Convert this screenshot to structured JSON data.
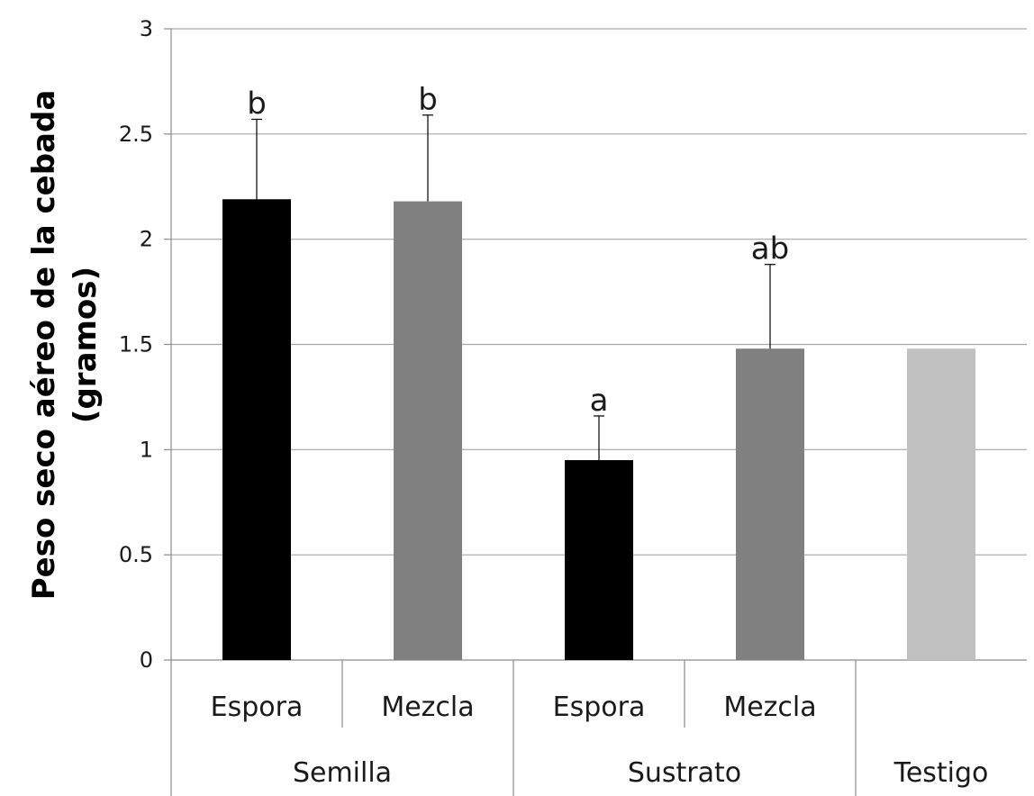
{
  "chart_data": {
    "type": "bar",
    "title": "",
    "ylabel_lines": [
      "Peso seco aéreo de la cebada",
      "(gramos)"
    ],
    "xlabel": "",
    "ylim": [
      0,
      3
    ],
    "yticks": [
      0,
      0.5,
      1,
      1.5,
      2,
      2.5,
      3
    ],
    "ytick_labels": [
      "0",
      "0.5",
      "1",
      "1.5",
      "2",
      "2.5",
      "3"
    ],
    "grid": true,
    "legend": "none",
    "groups": [
      {
        "label": "Semilla",
        "span": 2
      },
      {
        "label": "Sustrato",
        "span": 2
      },
      {
        "label": "Testigo",
        "span": 1
      }
    ],
    "categories": [
      "Espora",
      "Mezcla",
      "Espora",
      "Mezcla",
      ""
    ],
    "values": [
      2.19,
      2.18,
      0.95,
      1.48,
      1.48
    ],
    "error_upper": [
      2.57,
      2.59,
      1.16,
      1.88,
      null
    ],
    "letters": [
      "b",
      "b",
      "a",
      "ab",
      ""
    ],
    "colors": [
      "#000000",
      "#808080",
      "#000000",
      "#808080",
      "#c0c0c0"
    ],
    "gridline_color": "#a6a6a6",
    "axis_color": "#8c8c8c"
  }
}
